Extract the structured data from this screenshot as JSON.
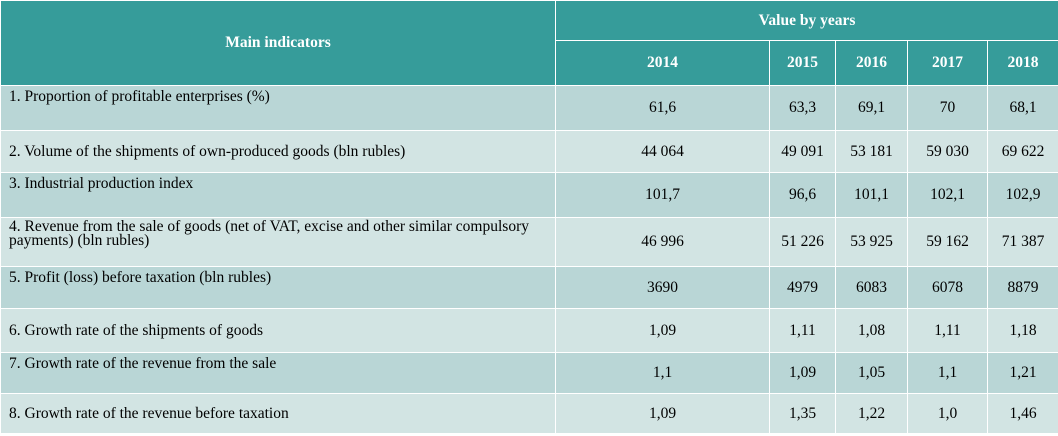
{
  "table": {
    "header_main": "Main indicators",
    "header_group": "Value by years",
    "years": [
      "2014",
      "2015",
      "2016",
      "2017",
      "2018"
    ],
    "rows": [
      {
        "label": "1. Proportion of profitable enterprises (%)",
        "values": [
          "61,6",
          "63,3",
          "69,1",
          "70",
          "68,1"
        ]
      },
      {
        "label": "2.  Volume of the shipments of own-produced goods (bln rubles)",
        "values": [
          "44 064",
          "49 091",
          "53 181",
          "59 030",
          "69 622"
        ]
      },
      {
        "label": "3. Industrial production index",
        "values": [
          "101,7",
          "96,6",
          "101,1",
          "102,1",
          "102,9"
        ]
      },
      {
        "label": "4. Revenue from the sale of goods (net of VAT, excise and other similar compulsory payments) (bln rubles)",
        "values": [
          "46 996",
          "51 226",
          "53 925",
          "59 162",
          "71 387"
        ]
      },
      {
        "label": "5. Profit (loss) before taxation (bln rubles)",
        "values": [
          "3690",
          "4979",
          "6083",
          "6078",
          "8879"
        ]
      },
      {
        "label": "6. Growth rate of the shipments of goods",
        "values": [
          "1,09",
          "1,11",
          "1,08",
          "1,11",
          "1,18"
        ]
      },
      {
        "label": "7. Growth rate of the revenue from the sale",
        "values": [
          "1,1",
          "1,09",
          "1,05",
          "1,1",
          "1,21"
        ]
      },
      {
        "label": "8. Growth rate of the revenue before taxation",
        "values": [
          "1,09",
          "1,35",
          "1,22",
          "1,0",
          "1,46"
        ]
      }
    ]
  },
  "colors": {
    "header_bg": "#369c9a",
    "row_odd_bg": "#b9d6d6",
    "row_even_bg": "#d2e4e3"
  }
}
